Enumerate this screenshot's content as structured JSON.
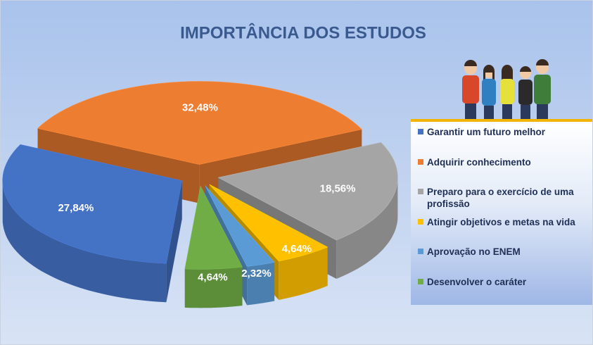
{
  "chart_data": {
    "type": "pie",
    "title": "IMPORTÂNCIA DOS ESTUDOS",
    "categories": [
      "Garantir um futuro melhor",
      "Adquirir conhecimento",
      "Preparo para o exercício de uma profissão",
      "Atingir objetivos e metas na vida",
      "Aprovação no ENEM",
      "Desenvolver o caráter"
    ],
    "values": [
      27.84,
      32.48,
      18.56,
      4.64,
      2.32,
      4.64
    ],
    "value_labels": [
      "27,84%",
      "32,48%",
      "18,56%",
      "4,64%",
      "2,32%",
      "4,64%"
    ],
    "colors": [
      "#4472c4",
      "#ed7d31",
      "#a5a5a5",
      "#ffc000",
      "#5b9bd5",
      "#70ad47"
    ],
    "legend": "right"
  }
}
